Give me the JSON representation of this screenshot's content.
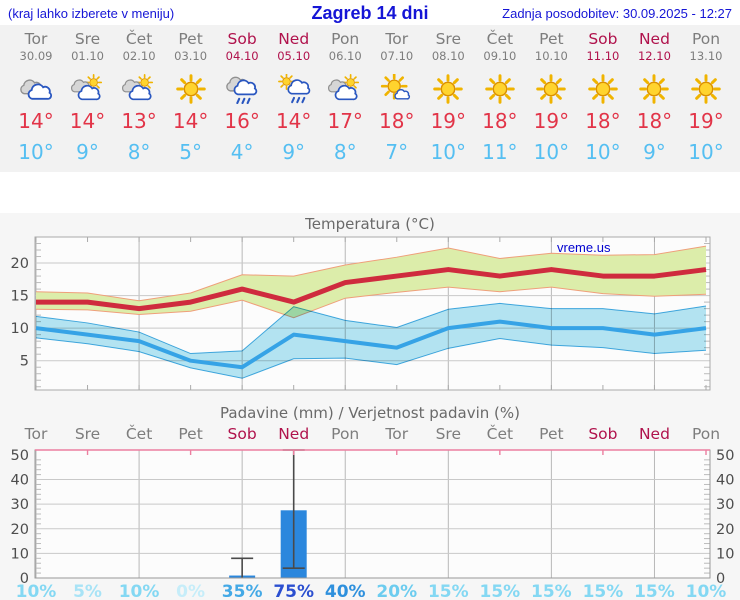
{
  "header": {
    "left_note": "(kraj lahko izberete v meniju)",
    "title": "Zagreb 14 dni",
    "updated": "Zadnja posodobitev: 30.09.2025 - 12:27"
  },
  "watermark": "vreme.us",
  "colors": {
    "accent_blue": "#1515d6",
    "weekday": "#7d7d7d",
    "weekend": "#b0124c",
    "tmax_text": "#e23448",
    "tmin_text": "#55bff2",
    "bar": "#2b87dd",
    "max_line": "#cf2b3e",
    "max_band": "#dcedaa",
    "max_band_edge": "#ef9f7a",
    "min_line": "#36a3e6",
    "min_band": "#b5e6f4",
    "min_band_edge": "#49b0e4",
    "whisker": "#4a4a4a",
    "precip_top_border": "#ec7fa0"
  },
  "days": [
    {
      "name": "Tor",
      "date": "30.09",
      "weekend": false,
      "icon": "cloudy-icon",
      "tmax": "14°",
      "tmin": "10°"
    },
    {
      "name": "Sre",
      "date": "01.10",
      "weekend": false,
      "icon": "sun-cloud-icon",
      "tmax": "14°",
      "tmin": "9°"
    },
    {
      "name": "Čet",
      "date": "02.10",
      "weekend": false,
      "icon": "sun-cloud-icon",
      "tmax": "13°",
      "tmin": "8°"
    },
    {
      "name": "Pet",
      "date": "03.10",
      "weekend": false,
      "icon": "sun-icon",
      "tmax": "14°",
      "tmin": "5°"
    },
    {
      "name": "Sob",
      "date": "04.10",
      "weekend": true,
      "icon": "cloud-rain-icon",
      "tmax": "16°",
      "tmin": "4°"
    },
    {
      "name": "Ned",
      "date": "05.10",
      "weekend": true,
      "icon": "sun-cloud-rain-icon",
      "tmax": "14°",
      "tmin": "9°"
    },
    {
      "name": "Pon",
      "date": "06.10",
      "weekend": false,
      "icon": "sun-cloud-icon",
      "tmax": "17°",
      "tmin": "8°"
    },
    {
      "name": "Tor",
      "date": "07.10",
      "weekend": false,
      "icon": "sun-small-cloud-icon",
      "tmax": "18°",
      "tmin": "7°"
    },
    {
      "name": "Sre",
      "date": "08.10",
      "weekend": false,
      "icon": "sun-icon",
      "tmax": "19°",
      "tmin": "10°"
    },
    {
      "name": "Čet",
      "date": "09.10",
      "weekend": false,
      "icon": "sun-icon",
      "tmax": "18°",
      "tmin": "11°"
    },
    {
      "name": "Pet",
      "date": "10.10",
      "weekend": false,
      "icon": "sun-icon",
      "tmax": "19°",
      "tmin": "10°"
    },
    {
      "name": "Sob",
      "date": "11.10",
      "weekend": true,
      "icon": "sun-icon",
      "tmax": "18°",
      "tmin": "10°"
    },
    {
      "name": "Ned",
      "date": "12.10",
      "weekend": true,
      "icon": "sun-icon",
      "tmax": "18°",
      "tmin": "9°"
    },
    {
      "name": "Pon",
      "date": "13.10",
      "weekend": false,
      "icon": "sun-icon",
      "tmax": "19°",
      "tmin": "10°"
    }
  ],
  "chart_data": [
    {
      "type": "line",
      "title": "Temperatura (°C)",
      "categories": [
        "Tor 30.09",
        "Sre 01.10",
        "Čet 02.10",
        "Pet 03.10",
        "Sob 04.10",
        "Ned 05.10",
        "Pon 06.10",
        "Tor 07.10",
        "Sre 08.10",
        "Čet 09.10",
        "Pet 10.10",
        "Sob 11.10",
        "Ned 12.10",
        "Pon 13.10"
      ],
      "ylim": [
        0.5,
        24
      ],
      "yticks": [
        5,
        10,
        15,
        20
      ],
      "grid": true,
      "series": [
        {
          "name": "max",
          "values": [
            14,
            14,
            13,
            14,
            16,
            14,
            17,
            18,
            19,
            18,
            19,
            18,
            18,
            19
          ]
        },
        {
          "name": "max_band_upper",
          "values": [
            15.6,
            15.4,
            14.2,
            15.4,
            18.2,
            18.0,
            19.7,
            20.9,
            22.3,
            20.7,
            21.5,
            21.2,
            21.3,
            22.6
          ]
        },
        {
          "name": "max_band_lower",
          "values": [
            12.9,
            12.8,
            12.1,
            12.6,
            14.3,
            11.6,
            14.6,
            15.5,
            16.3,
            15.6,
            16.3,
            15.3,
            14.9,
            15.2
          ]
        },
        {
          "name": "min",
          "values": [
            10,
            9,
            8,
            5,
            4,
            9,
            8,
            7,
            10,
            11,
            10,
            10,
            9,
            10
          ]
        },
        {
          "name": "min_band_upper",
          "values": [
            11.8,
            10.8,
            9.4,
            6.1,
            6.5,
            13.3,
            11.2,
            10.1,
            12.9,
            13.8,
            13.0,
            13.0,
            12.2,
            13.4
          ]
        },
        {
          "name": "min_band_lower",
          "values": [
            8.5,
            7.6,
            6.4,
            3.9,
            2.3,
            5.3,
            5.4,
            4.4,
            6.9,
            8.4,
            7.4,
            7.0,
            6.1,
            6.6
          ]
        }
      ]
    },
    {
      "type": "bar",
      "title": "Padavine (mm) / Verjetnost padavin (%)",
      "categories": [
        "Tor",
        "Sre",
        "Čet",
        "Pet",
        "Sob",
        "Ned",
        "Pon",
        "Tor",
        "Sre",
        "Čet",
        "Pet",
        "Sob",
        "Ned",
        "Pon"
      ],
      "ylim": [
        0,
        52
      ],
      "yticks": [
        0,
        10,
        20,
        30,
        40,
        50
      ],
      "grid": true,
      "values_mm": [
        0,
        0,
        0,
        0,
        1,
        27.5,
        0,
        0,
        0,
        0,
        0,
        0,
        0,
        0
      ],
      "whiskers": [
        null,
        null,
        null,
        null,
        {
          "lo": 0,
          "hi": 8
        },
        {
          "lo": 4,
          "hi": 52
        },
        null,
        null,
        null,
        null,
        null,
        null,
        null,
        null
      ],
      "prob_percent": [
        10,
        5,
        10,
        0,
        35,
        75,
        40,
        20,
        15,
        15,
        15,
        15,
        15,
        10
      ],
      "prob_labels": [
        "10%",
        "5%",
        "10%",
        "0%",
        "35%",
        "75%",
        "40%",
        "20%",
        "15%",
        "15%",
        "15%",
        "15%",
        "15%",
        "10%"
      ],
      "prob_colors": [
        "#84d8f3",
        "#a8e3f6",
        "#84d8f3",
        "#c6edf9",
        "#44a9e6",
        "#2b4fd0",
        "#2e90dd",
        "#6cccef",
        "#84d8f3",
        "#84d8f3",
        "#84d8f3",
        "#84d8f3",
        "#84d8f3",
        "#84d8f3"
      ]
    }
  ]
}
